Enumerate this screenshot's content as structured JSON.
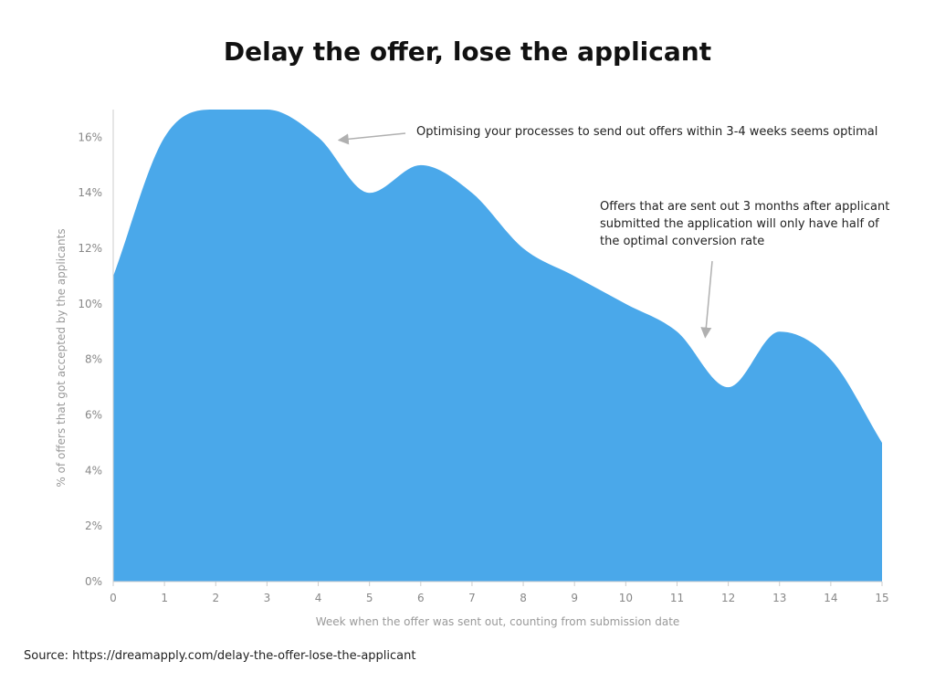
{
  "title": "Delay the offer, lose the applicant",
  "source": "Source: https://dreamapply.com/delay-the-offer-lose-the-applicant",
  "colors": {
    "area": "#4aa8ea",
    "axis": "#cccccc",
    "arrow": "#b0b0b0"
  },
  "chart_data": {
    "type": "area",
    "x": [
      0,
      1,
      2,
      3,
      4,
      5,
      6,
      7,
      8,
      9,
      10,
      11,
      12,
      13,
      14,
      15
    ],
    "series": [
      {
        "values": [
          11,
          16,
          17,
          17,
          16,
          14,
          15,
          14,
          12,
          11,
          10,
          9,
          7,
          9,
          8,
          5
        ]
      }
    ],
    "xlabel": "Week when the offer was sent out, counting from submission date",
    "ylabel": "% of offers that got accepted by the applicants",
    "xlim": [
      0,
      15
    ],
    "ylim": [
      0,
      17
    ],
    "x_ticks": [
      "0",
      "1",
      "2",
      "3",
      "4",
      "5",
      "6",
      "7",
      "8",
      "9",
      "10",
      "11",
      "12",
      "13",
      "14",
      "15"
    ],
    "y_ticks": [
      {
        "value": 0,
        "label": "0%"
      },
      {
        "value": 2,
        "label": "2%"
      },
      {
        "value": 4,
        "label": "4%"
      },
      {
        "value": 6,
        "label": "6%"
      },
      {
        "value": 8,
        "label": "8%"
      },
      {
        "value": 10,
        "label": "10%"
      },
      {
        "value": 12,
        "label": "12%"
      },
      {
        "value": 14,
        "label": "14%"
      },
      {
        "value": 16,
        "label": "16%"
      }
    ],
    "grid": false,
    "annotations": [
      {
        "lines": [
          "Optimising your processes to send out offers within 3-4 weeks seems optimal"
        ],
        "points_to": {
          "x": 4.4,
          "y": 15.9
        }
      },
      {
        "lines": [
          "Offers that are sent out 3 months after applicant",
          "submitted the application will only have half of",
          "the optimal conversion rate"
        ],
        "points_to": {
          "x": 11.55,
          "y": 8.8
        }
      }
    ]
  }
}
